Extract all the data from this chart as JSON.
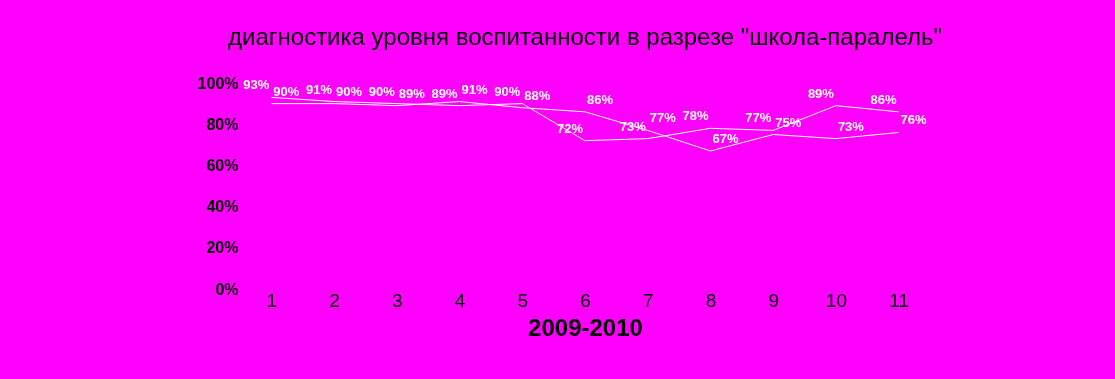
{
  "chart_data": {
    "type": "line",
    "title": "диагностика уровня воспитанности в разрезе \"школа-паралель\"",
    "xlabel": "2009-2010",
    "categories": [
      "1",
      "2",
      "3",
      "4",
      "5",
      "6",
      "7",
      "8",
      "9",
      "10",
      "11"
    ],
    "series": [
      {
        "color": "#ffffff",
        "values": [
          93,
          91,
          90,
          89,
          90,
          72,
          73,
          78,
          77,
          89,
          86
        ],
        "value_labels": [
          "93%",
          "91%",
          "90%",
          "89%",
          "90%",
          "72%",
          "73%",
          "78%",
          "77%",
          "89%",
          "86%"
        ]
      },
      {
        "color": "#ffffff",
        "values": [
          90,
          90,
          89,
          91,
          88,
          86,
          77,
          67,
          75,
          73,
          76
        ],
        "value_labels": [
          "90%",
          "90%",
          "89%",
          "91%",
          "88%",
          "86%",
          "77%",
          "67%",
          "75%",
          "73%",
          "76%"
        ]
      }
    ],
    "ylim": [
      0,
      100
    ],
    "yticks": [
      {
        "value": 0,
        "label": "0%"
      },
      {
        "value": 20,
        "label": "20%"
      },
      {
        "value": 40,
        "label": "40%"
      },
      {
        "value": 60,
        "label": "60%"
      },
      {
        "value": 80,
        "label": "80%"
      },
      {
        "value": 100,
        "label": "100%"
      }
    ],
    "grid": false,
    "legend": false,
    "marker": "none"
  }
}
